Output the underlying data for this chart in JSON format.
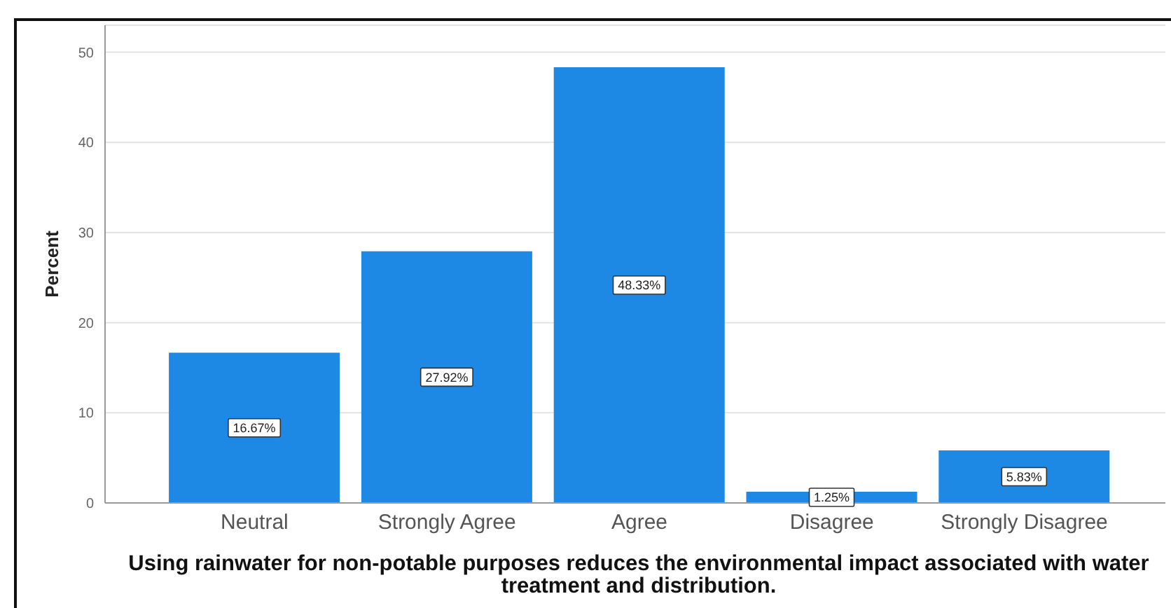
{
  "chart_data": {
    "type": "bar",
    "xlabel": "Using rainwater for non-potable purposes reduces the environmental impact associated with water treatment and distribution.",
    "ylabel": "Percent",
    "categories": [
      "Neutral",
      "Strongly Agree",
      "Agree",
      "Disagree",
      "Strongly Disagree"
    ],
    "values": [
      16.67,
      27.92,
      48.33,
      1.25,
      5.83
    ],
    "value_labels": [
      "16.67%",
      "27.92%",
      "48.33%",
      "1.25%",
      "5.83%"
    ],
    "color": "#1e88e5",
    "ylim": [
      0,
      53
    ],
    "yticks": [
      0,
      10,
      20,
      30,
      40,
      50
    ],
    "grid": "y"
  }
}
